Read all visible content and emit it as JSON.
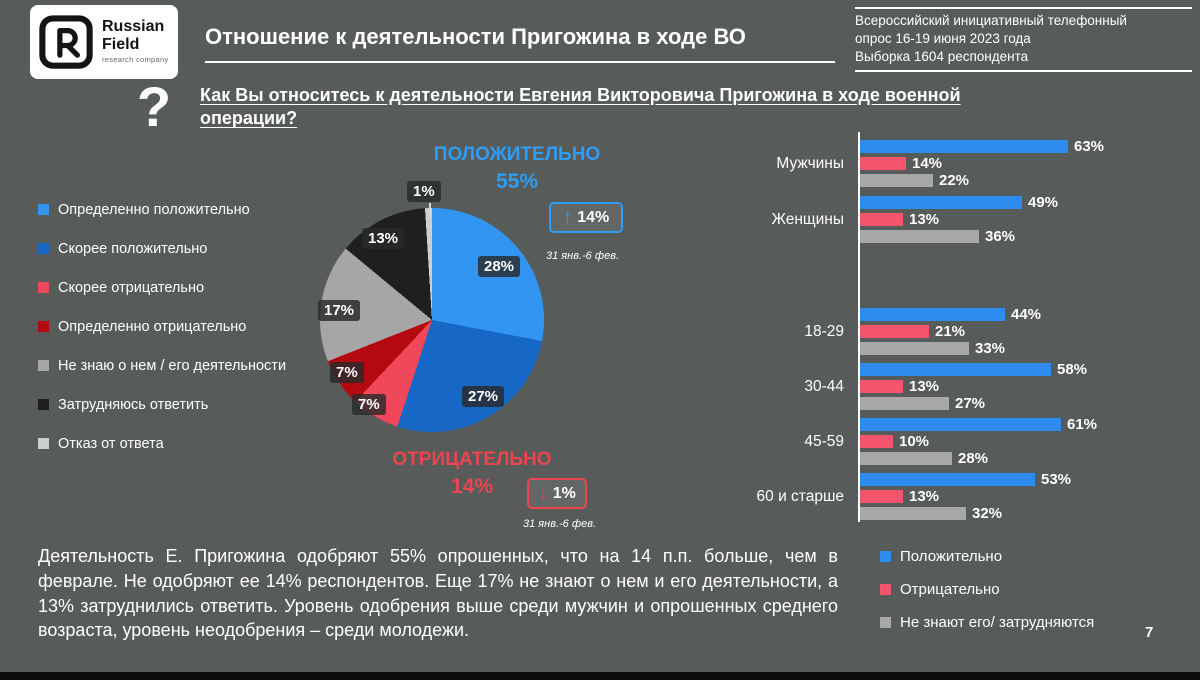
{
  "page": {
    "number": "7"
  },
  "logo": {
    "brand_line1": "Russian",
    "brand_line2": "Field",
    "subtitle": "research company",
    "question_mark": "?"
  },
  "header": {
    "title": "Отношение к деятельности Пригожина в ходе ВО",
    "survey_info_lines": [
      "Всероссийский инициативный телефонный",
      "опрос 16-19 июня 2023 года",
      "Выборка 1604 респондента"
    ]
  },
  "question": "Как Вы относитесь к деятельности Евгения Викторовича Пригожина в ходе военной операции?",
  "summary": "Деятельность Е. Пригожина одобряют 55% опрошенных, что на 14 п.п. больше, чем в феврале. Не одобряют ее 14% респондентов. Еще 17% не знают о нем и его деятельности, а 13% затруднились ответить. Уровень одобрения выше среди мужчин и опрошенных среднего возраста, уровень неодобрения – среди молодежи.",
  "colors": {
    "background": "#575b5a",
    "positive_accent": "#2f9df5",
    "negative_accent": "#ec4550"
  },
  "chart_data": [
    {
      "type": "pie",
      "segments": [
        {
          "label": "Определенно положительно",
          "value": 28,
          "color": "#3395f2"
        },
        {
          "label": "Скорее положительно",
          "value": 27,
          "color": "#1667c6"
        },
        {
          "label": "Скорее отрицательно",
          "value": 7,
          "color": "#f0485a"
        },
        {
          "label": "Определенно отрицательно",
          "value": 7,
          "color": "#b3090f"
        },
        {
          "label": "Не знаю о нем / его деятельности",
          "value": 17,
          "color": "#a6a6a6"
        },
        {
          "label": "Затрудняюсь ответить",
          "value": 13,
          "color": "#1f1f1f"
        },
        {
          "label": "Отказ от ответа",
          "value": 1,
          "color": "#cdd0d0"
        }
      ],
      "positive": {
        "label": "ПОЛОЖИТЕЛЬНО",
        "value": "55%",
        "change": "14%",
        "change_direction": "up",
        "change_caption": "31 янв.-6 фев."
      },
      "negative": {
        "label": "ОТРИЦАТЕЛЬНО",
        "value": "14%",
        "change": "1%",
        "change_direction": "down",
        "change_caption": "31 янв.-6 фев."
      },
      "legend_position": "left"
    },
    {
      "type": "bar",
      "orientation": "horizontal",
      "categories": [
        "Мужчины",
        "Женщины",
        "18-29",
        "30-44",
        "45-59",
        "60 и старше"
      ],
      "series": [
        {
          "name": "Положительно",
          "color": "#2e8bef",
          "values": [
            63,
            49,
            44,
            58,
            61,
            53
          ]
        },
        {
          "name": "Отрицательно",
          "color": "#f4546c",
          "values": [
            14,
            13,
            21,
            13,
            10,
            13
          ]
        },
        {
          "name": "Не знают его/ затрудняются",
          "color": "#a8a8a8",
          "values": [
            22,
            36,
            33,
            27,
            28,
            32
          ]
        }
      ],
      "value_format": "percent",
      "xlim": [
        0,
        63
      ],
      "grid": false,
      "legend_position": "bottom-right"
    }
  ]
}
